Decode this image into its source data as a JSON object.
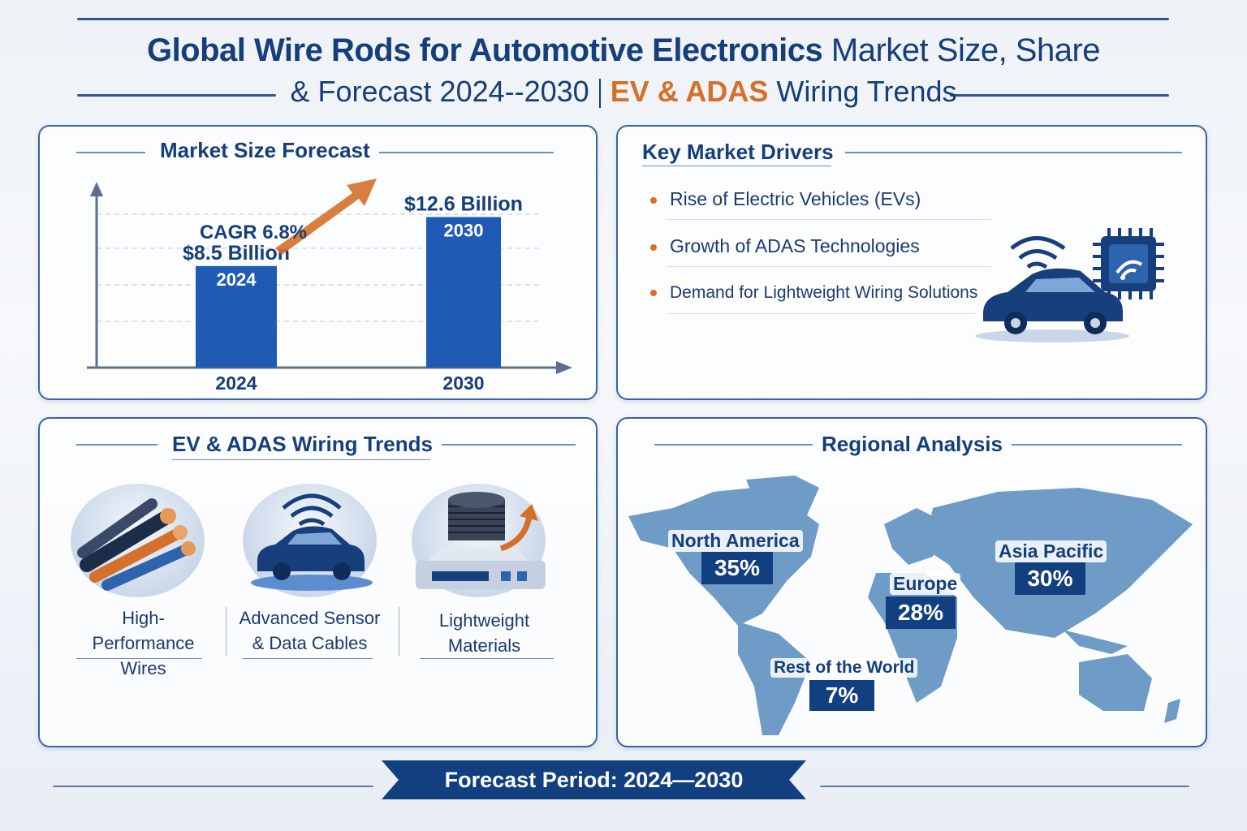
{
  "header": {
    "title_bold": "Global Wire Rods for Automotive Electronics",
    "title_light": "Market Size, Share",
    "subtitle_start": "& Forecast 2024--2030",
    "subtitle_accent": "EV & ADAS",
    "subtitle_end": "Wiring Trends"
  },
  "market": {
    "heading": "Market Size Forecast",
    "cagr": "CAGR 6.8%"
  },
  "chart_data": {
    "type": "bar",
    "title": "Market Size Forecast",
    "categories": [
      "2024",
      "2030"
    ],
    "values": [
      8.5,
      12.6
    ],
    "value_labels": [
      "$8.5 Billion",
      "$12.6 Billion"
    ],
    "unit": "USD Billion",
    "annotation": "CAGR 6.8%",
    "ylim": [
      0,
      14
    ],
    "grid": true,
    "colors": {
      "bar": "#1f5bb5"
    }
  },
  "drivers": {
    "heading": "Key Market Drivers",
    "items": [
      "Rise of Electric Vehicles (EVs)",
      "Growth of ADAS Technologies",
      "Demand for Lightweight Wiring Solutions"
    ]
  },
  "trends": {
    "heading": "EV & ADAS Wiring Trends",
    "items": [
      {
        "l1": "High-Performance",
        "l2": "Wires"
      },
      {
        "l1": "Advanced Sensor",
        "l2": "& Data Cables"
      },
      {
        "l1": "Lightweight",
        "l2": "Materials"
      }
    ]
  },
  "regions": {
    "heading": "Regional Analysis",
    "items": [
      {
        "name": "North America",
        "share": "35%"
      },
      {
        "name": "Europe",
        "share": "28%"
      },
      {
        "name": "Asia Pacific",
        "share": "30%"
      },
      {
        "name": "Rest of the World",
        "share": "7%"
      }
    ]
  },
  "footer": {
    "banner": "Forecast Period: 2024—2030"
  },
  "colors": {
    "navy": "#163e7a",
    "accent": "#d4702a",
    "bar": "#1f5bb5",
    "map": "#6f9bc7"
  }
}
